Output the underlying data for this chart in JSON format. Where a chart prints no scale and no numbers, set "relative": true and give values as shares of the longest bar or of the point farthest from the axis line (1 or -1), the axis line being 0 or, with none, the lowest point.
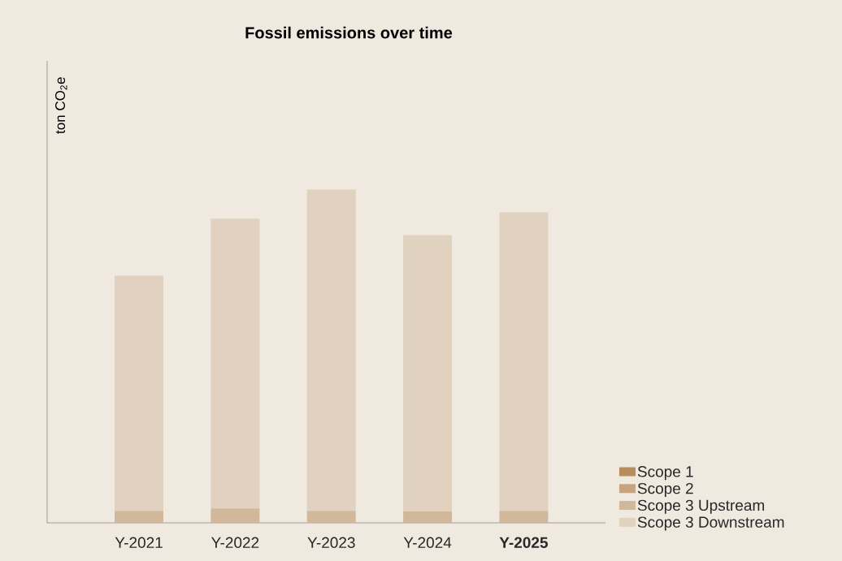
{
  "chart_data": {
    "type": "bar",
    "stacked": true,
    "relative": true,
    "title": "Fossil emissions over time",
    "ylabel": "ton CO$_{2}$e",
    "categories": [
      "Y-2021",
      "Y-2022",
      "Y-2023",
      "Y-2024",
      "**Y-2025**"
    ],
    "series": [
      {
        "name": "Scope 1",
        "color": "#b68d5f",
        "values": [
          0,
          0,
          0,
          0,
          0
        ]
      },
      {
        "name": "Scope 2",
        "color": "#c7a47f",
        "values": [
          0,
          0,
          0,
          0,
          0
        ]
      },
      {
        "name": "Scope 3 Upstream",
        "color": "#d2b89b",
        "values": [
          0.036,
          0.043,
          0.036,
          0.034,
          0.036
        ]
      },
      {
        "name": "Scope 3 Downstream",
        "color": "#e0d2bf",
        "values": [
          0.706,
          0.87,
          0.964,
          0.829,
          0.896
        ]
      }
    ],
    "grid": false,
    "legend": "bottom right"
  }
}
